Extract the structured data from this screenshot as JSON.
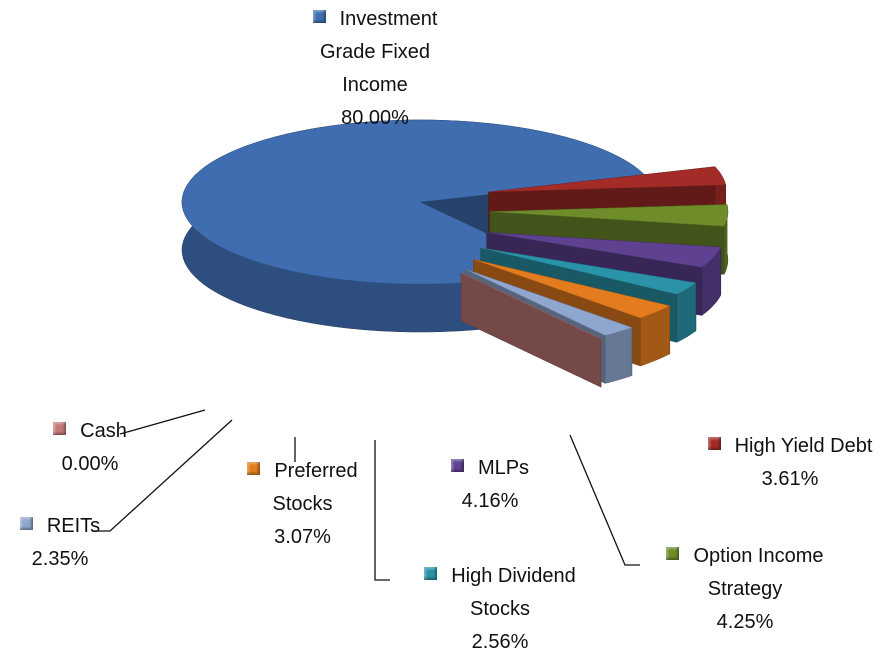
{
  "chart_data": {
    "type": "pie3d",
    "categories": [
      "Investment Grade Fixed Income",
      "High Yield Debt",
      "Option Income Strategy",
      "MLPs",
      "High Dividend Stocks",
      "Preferred Stocks",
      "REITs",
      "Cash"
    ],
    "values": [
      80.0,
      3.61,
      4.25,
      4.16,
      2.56,
      3.07,
      2.35,
      0.0
    ],
    "value_labels": [
      "80.00%",
      "3.61%",
      "4.25%",
      "4.16%",
      "2.56%",
      "3.07%",
      "2.35%",
      "0.00%"
    ],
    "colors": [
      "#3f6db0",
      "#a32c28",
      "#6e8c2a",
      "#5e4190",
      "#2a93a8",
      "#e27c1e",
      "#8fa6cf",
      "#c47a7a"
    ]
  }
}
